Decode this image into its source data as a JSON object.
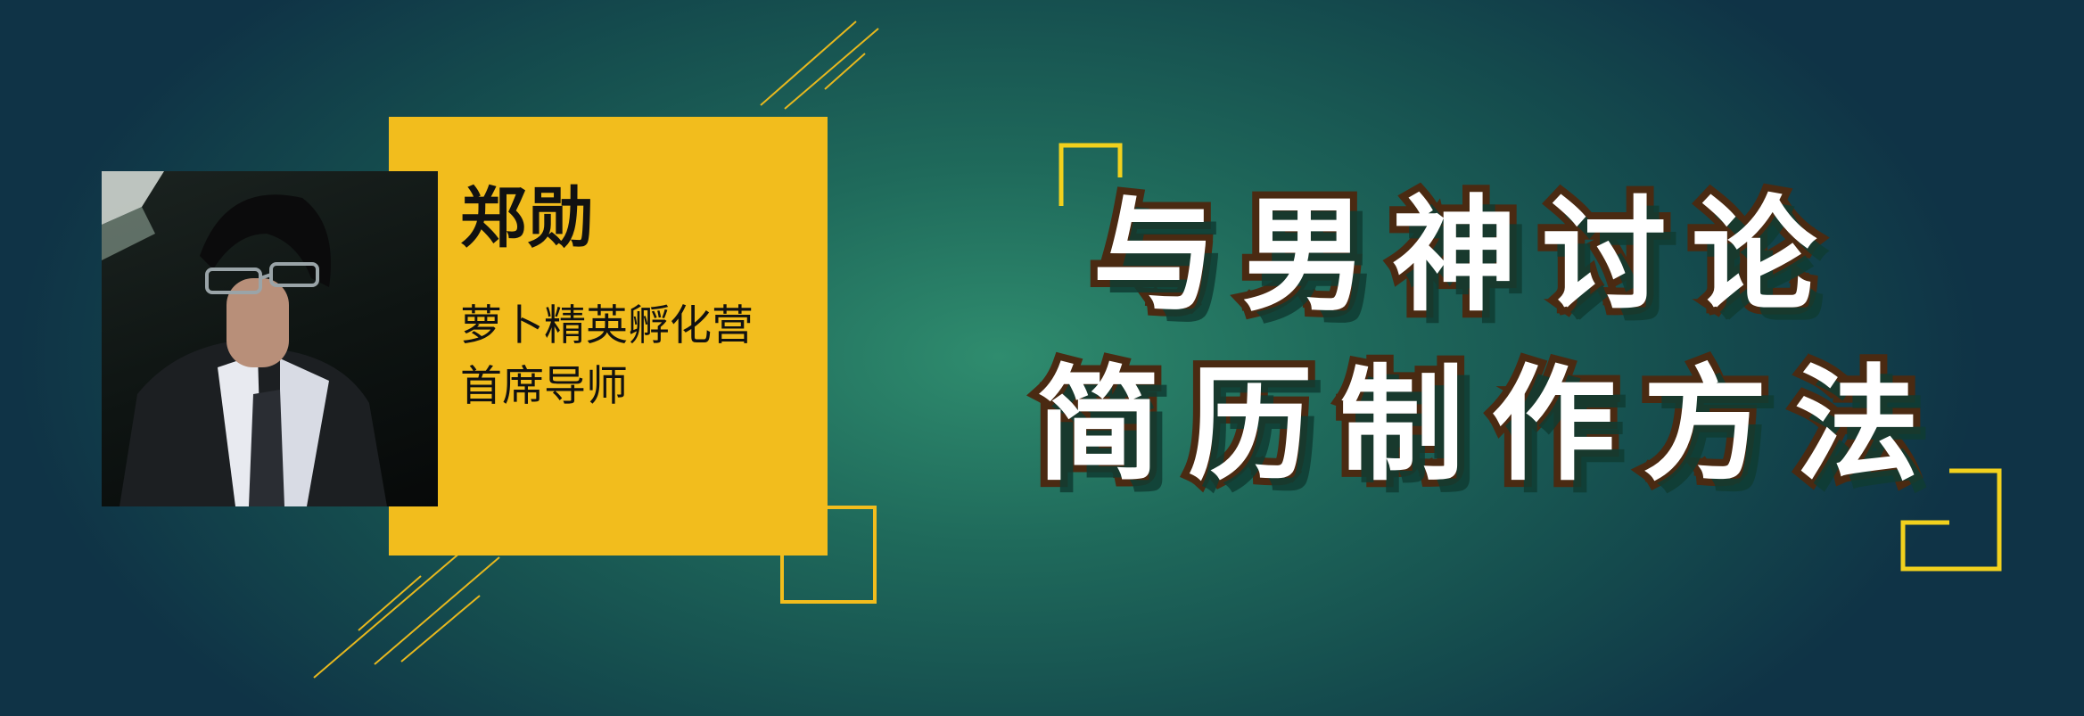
{
  "speaker": {
    "name": "郑勋",
    "subtitle_line1": "萝卜精英孵化营",
    "subtitle_line2": "首席导师"
  },
  "title": {
    "line1": "与男神讨论",
    "line2": "简历制作方法"
  },
  "colors": {
    "accent": "#f2bd1d",
    "title_text": "#ffffff",
    "title_outline": "#4a2a12",
    "background": "#1f6a5b"
  }
}
